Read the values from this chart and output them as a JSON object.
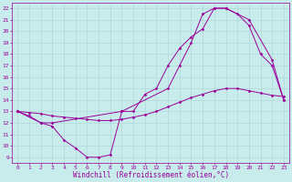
{
  "xlabel": "Windchill (Refroidissement éolien,°C)",
  "ylabel": "",
  "bg_color": "#c8ecec",
  "grid_color": "#b0d8d8",
  "line_color": "#990099",
  "line1_x": [
    0,
    1,
    2,
    3,
    4,
    5,
    6,
    7,
    8,
    9,
    10,
    11,
    12,
    13,
    14,
    15,
    16,
    17,
    18,
    19,
    20,
    21,
    22,
    23
  ],
  "line1_y": [
    13.0,
    12.6,
    12.0,
    11.7,
    10.5,
    9.8,
    9.0,
    9.0,
    9.2,
    13.0,
    13.0,
    14.5,
    15.0,
    17.0,
    18.5,
    19.5,
    20.2,
    22.0,
    22.0,
    21.5,
    20.5,
    18.0,
    17.0,
    14.0
  ],
  "line2_x": [
    0,
    1,
    2,
    3,
    4,
    5,
    6,
    7,
    8,
    9,
    10,
    11,
    12,
    13,
    14,
    15,
    16,
    17,
    18,
    19,
    20,
    21,
    22,
    23
  ],
  "line2_y": [
    13.0,
    12.9,
    12.8,
    12.6,
    12.5,
    12.4,
    12.3,
    12.2,
    12.2,
    12.3,
    12.5,
    12.7,
    13.0,
    13.4,
    13.8,
    14.2,
    14.5,
    14.8,
    15.0,
    15.0,
    14.8,
    14.6,
    14.4,
    14.3
  ],
  "line3_x": [
    0,
    2,
    3,
    9,
    13,
    14,
    15,
    16,
    17,
    18,
    20,
    22,
    23
  ],
  "line3_y": [
    13.0,
    12.0,
    12.0,
    13.0,
    15.0,
    17.0,
    19.0,
    21.5,
    22.0,
    22.0,
    21.0,
    17.5,
    14.0
  ],
  "xlim": [
    -0.5,
    23.5
  ],
  "ylim": [
    8.5,
    22.5
  ],
  "yticks": [
    9,
    10,
    11,
    12,
    13,
    14,
    15,
    16,
    17,
    18,
    19,
    20,
    21,
    22
  ],
  "xticks": [
    0,
    1,
    2,
    3,
    4,
    5,
    6,
    7,
    8,
    9,
    10,
    11,
    12,
    13,
    14,
    15,
    16,
    17,
    18,
    19,
    20,
    21,
    22,
    23
  ],
  "marker": "D",
  "markersize": 1.5,
  "linewidth": 0.7,
  "tick_fontsize": 4.5,
  "xlabel_fontsize": 5.5
}
